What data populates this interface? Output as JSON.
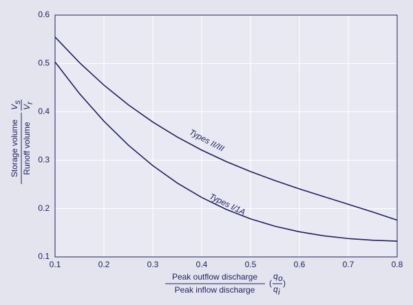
{
  "chart_data": {
    "type": "line",
    "x": [
      0.1,
      0.15,
      0.2,
      0.25,
      0.3,
      0.35,
      0.4,
      0.45,
      0.5,
      0.55,
      0.6,
      0.65,
      0.7,
      0.75,
      0.8
    ],
    "series": [
      {
        "name": "Types II/III",
        "color": "#1f1f5c",
        "values": [
          0.5546,
          0.5017,
          0.4552,
          0.4144,
          0.3789,
          0.3479,
          0.3209,
          0.2973,
          0.2765,
          0.2578,
          0.2407,
          0.2246,
          0.2088,
          0.1928,
          0.176
        ]
      },
      {
        "name": "Types I/1A",
        "color": "#1f1f5c",
        "values": [
          0.503,
          0.4376,
          0.3806,
          0.3311,
          0.2887,
          0.2528,
          0.2229,
          0.1984,
          0.1787,
          0.1634,
          0.1519,
          0.1436,
          0.138,
          0.1345,
          0.1326
        ]
      }
    ],
    "xlim": [
      0.1,
      0.8
    ],
    "xticks": [
      0.1,
      0.2,
      0.3,
      0.4,
      0.5,
      0.6,
      0.7,
      0.8
    ],
    "ylim": [
      0.1,
      0.6
    ],
    "yticks": [
      0.1,
      0.2,
      0.3,
      0.4,
      0.5,
      0.6
    ],
    "grid": true,
    "x_label": {
      "top": "Peak outflow discharge",
      "bottom": "Peak inflow discharge",
      "symbol_top": "q",
      "sub_top": "o",
      "symbol_bottom": "q",
      "sub_bottom": "i",
      "open": "(",
      "close": ")"
    },
    "y_label": {
      "top": "Storage volume",
      "bottom": "Runoff volume",
      "symbol_top": "V",
      "sub_top": "s",
      "symbol_bottom": "V",
      "sub_bottom": "r"
    }
  }
}
